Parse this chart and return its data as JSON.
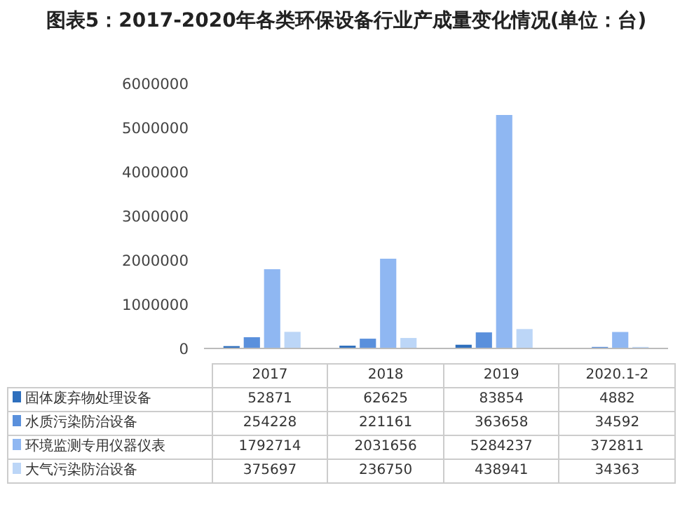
{
  "chart_data": {
    "type": "bar",
    "title": "图表5：2017-2020年各类环保设备行业产成量变化情况(单位：台)",
    "categories": [
      "2017",
      "2018",
      "2019",
      "2020.1-2"
    ],
    "series": [
      {
        "name": "固体废弃物处理设备",
        "color": "#2e6fbd",
        "values": [
          52871,
          62625,
          83854,
          4882
        ],
        "value_labels": [
          "52871",
          "62625",
          "83854",
          "4882"
        ]
      },
      {
        "name": "水质污染防治设备",
        "color": "#5a90dc",
        "values": [
          254228,
          221161,
          363658,
          34592
        ],
        "value_labels": [
          "254228",
          "221161",
          "363658",
          "34592"
        ]
      },
      {
        "name": "环境监测专用仪器仪表",
        "color": "#8fb7f2",
        "values": [
          1792714,
          2031656,
          5284237,
          372811
        ],
        "value_labels": [
          "1792714",
          "2031656",
          "5284237",
          "372811"
        ]
      },
      {
        "name": "大气污染防治设备",
        "color": "#bcd6f7",
        "values": [
          375697,
          236750,
          438941,
          34363
        ],
        "value_labels": [
          "375697",
          "236750",
          "438941",
          "34363"
        ]
      }
    ],
    "ylim": [
      0,
      6000000
    ],
    "yticks": [
      0,
      1000000,
      2000000,
      3000000,
      4000000,
      5000000,
      6000000
    ],
    "legend": "bottom"
  }
}
